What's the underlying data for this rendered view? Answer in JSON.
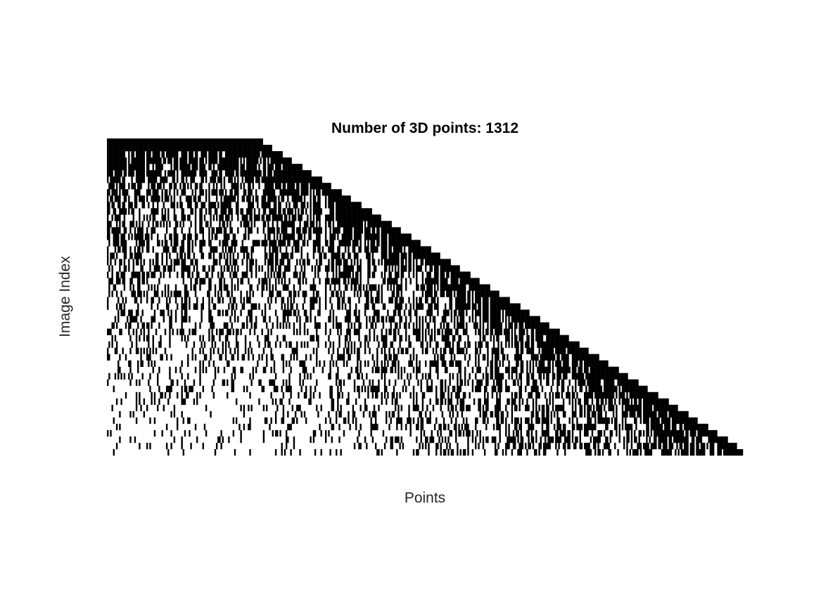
{
  "chart_data": {
    "type": "heatmap",
    "title": "Number of 3D points: 1312",
    "xlabel": "Points",
    "ylabel": "Image Index",
    "n_points": 1312,
    "n_images": 50,
    "x_ticks": [],
    "y_ticks": [],
    "grid": false,
    "legend": "none",
    "colors": {
      "observed": "#000000",
      "unobserved": "#ffffff"
    },
    "description_of_pattern": "visibility matrix: points sorted by first observing image; each point visible from its first image onward with decreasing density, forming a staircase upper boundary"
  }
}
